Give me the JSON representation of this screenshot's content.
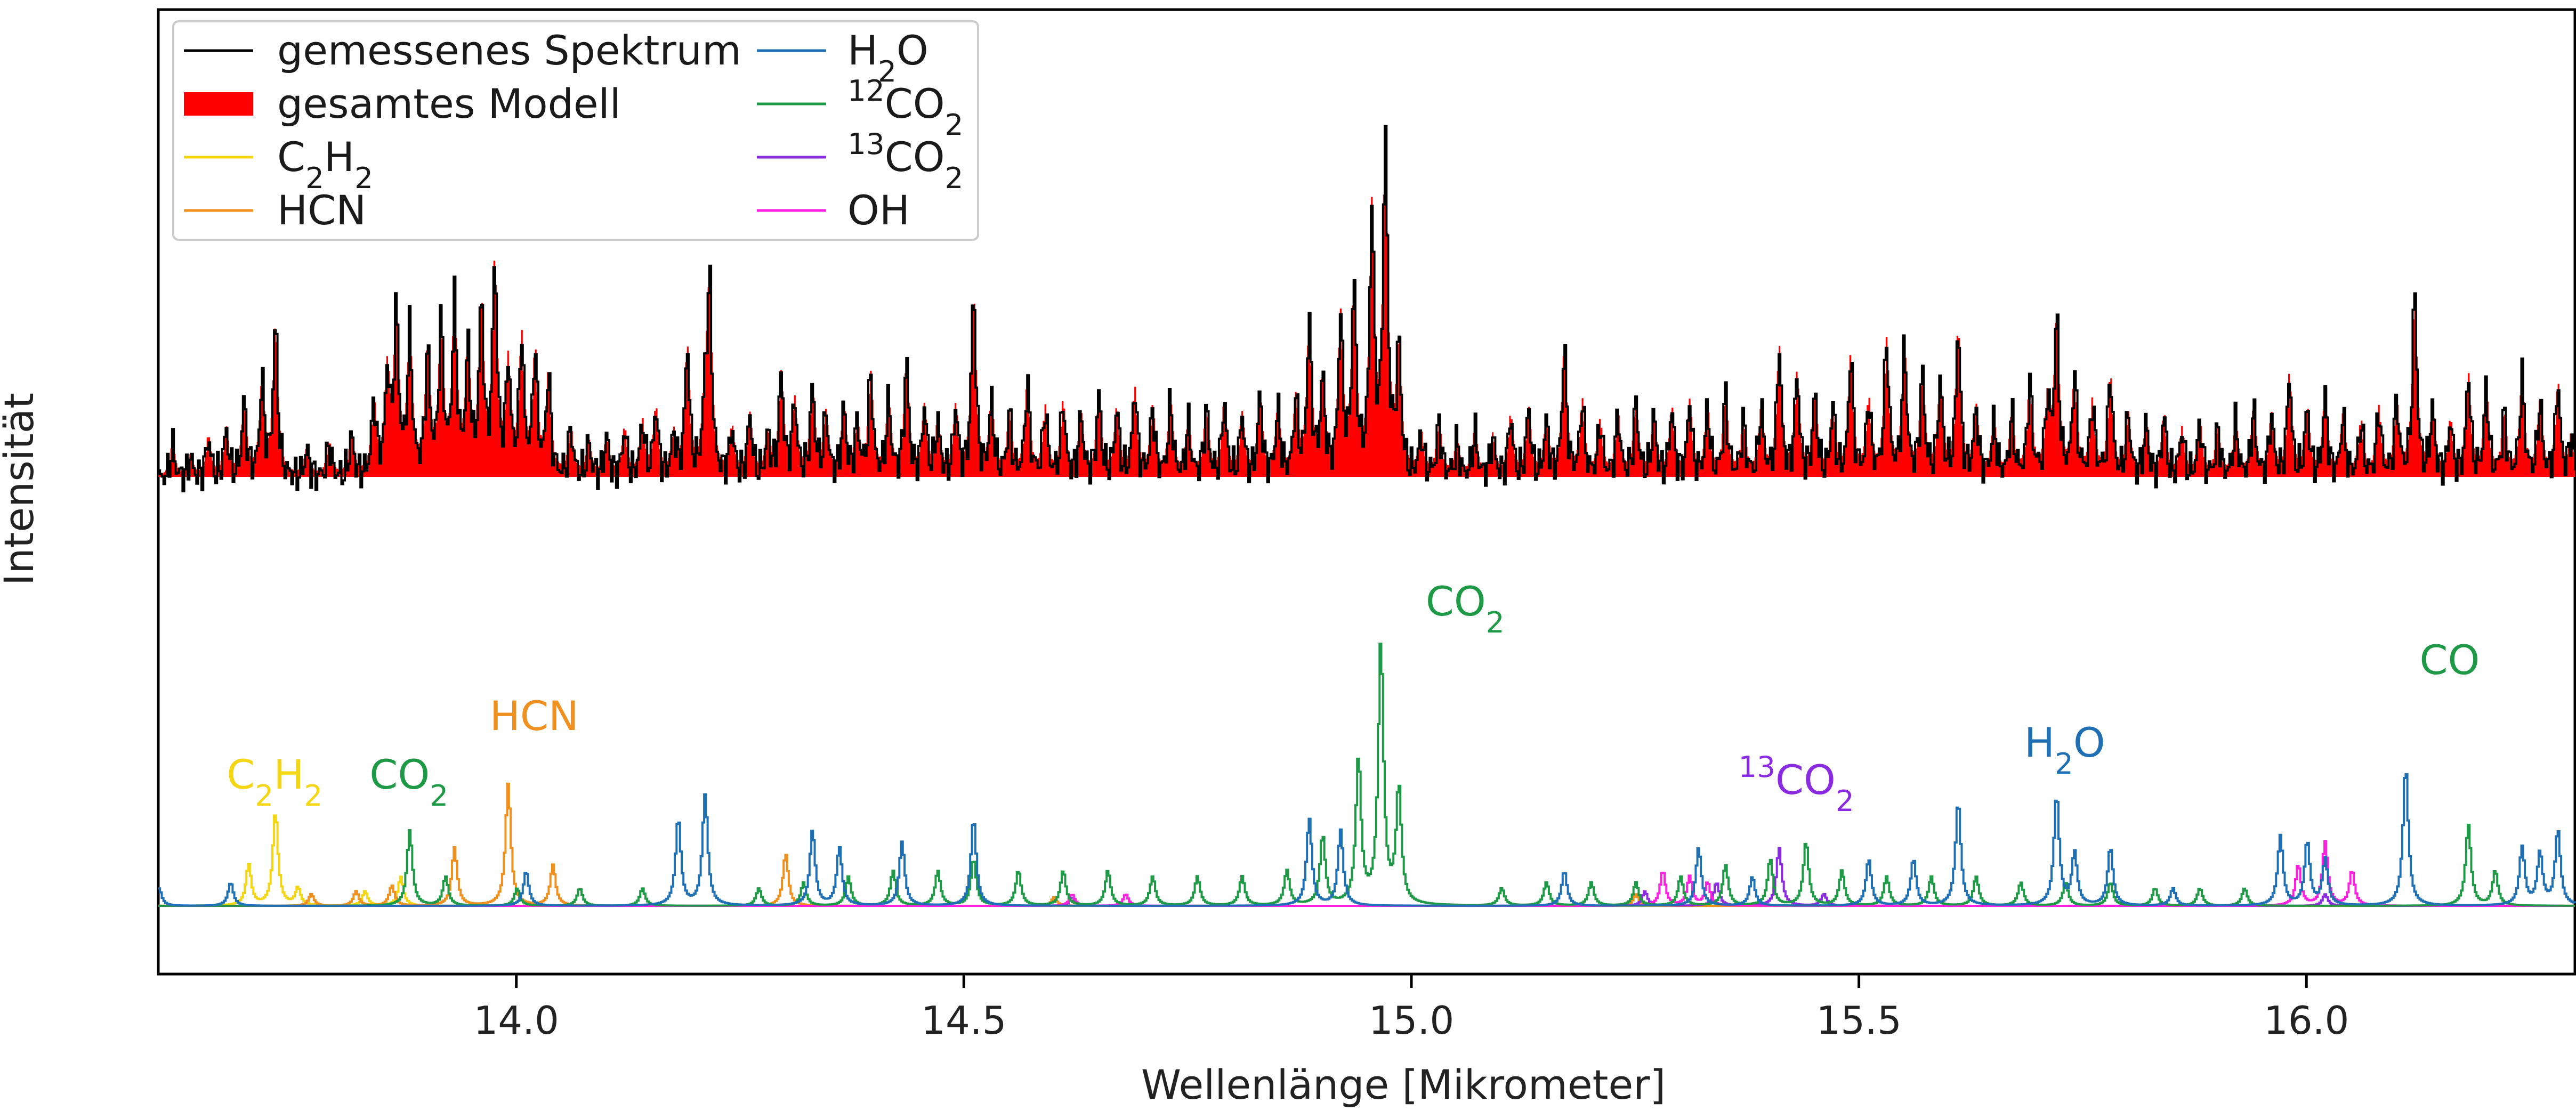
{
  "chart_data": {
    "type": "line",
    "title": "",
    "xlabel": "Wellenlänge [Mikrometer]",
    "ylabel": "Intensität",
    "xlim": [
      13.6,
      16.3
    ],
    "x_ticks": [
      14.0,
      14.5,
      15.0,
      15.5,
      16.0
    ],
    "x_tick_labels": [
      "14.0",
      "14.5",
      "15.0",
      "15.5",
      "16.0"
    ],
    "y_ticks": [],
    "grid": false,
    "legend": {
      "position": "top-left",
      "columns": 2,
      "entries": [
        {
          "key": "measured",
          "label": "gemessenes Spektrum",
          "color": "#000000",
          "style": "line"
        },
        {
          "key": "model",
          "label": "gesamtes Modell",
          "color": "#ff0000",
          "style": "fill"
        },
        {
          "key": "c2h2",
          "label": "C2H2",
          "color": "#f5d614",
          "style": "line"
        },
        {
          "key": "hcn",
          "label": "HCN",
          "color": "#f0901e",
          "style": "line"
        },
        {
          "key": "h2o",
          "label": "H2O",
          "color": "#1f6fb4",
          "style": "line"
        },
        {
          "key": "co2_12",
          "label": "12CO2",
          "color": "#1e9a46",
          "style": "line"
        },
        {
          "key": "co2_13",
          "label": "13CO2",
          "color": "#8a2be2",
          "style": "line"
        },
        {
          "key": "oh",
          "label": "OH",
          "color": "#ff1fe0",
          "style": "line"
        }
      ]
    },
    "annotations": [
      {
        "label": "C2H2",
        "x": 13.73,
        "color": "#f5d614"
      },
      {
        "label": "CO2",
        "x": 13.88,
        "color": "#1e9a46"
      },
      {
        "label": "HCN",
        "x": 14.02,
        "color": "#f0901e"
      },
      {
        "label": "CO2",
        "x": 15.06,
        "color": "#1e9a46"
      },
      {
        "label": "13CO2",
        "x": 15.43,
        "color": "#8a2be2"
      },
      {
        "label": "H2O",
        "x": 15.73,
        "color": "#1f6fb4"
      },
      {
        "label": "CO",
        "x": 16.16,
        "color": "#1e9a46"
      }
    ],
    "series_upper": {
      "baseline": 0,
      "peaks": [
        [
          13.615,
          0.1
        ],
        [
          13.635,
          0.06
        ],
        [
          13.655,
          0.12
        ],
        [
          13.675,
          0.14
        ],
        [
          13.695,
          0.22
        ],
        [
          13.715,
          0.28
        ],
        [
          13.73,
          0.45
        ],
        [
          13.765,
          0.08
        ],
        [
          13.79,
          0.1
        ],
        [
          13.815,
          0.12
        ],
        [
          13.84,
          0.22
        ],
        [
          13.855,
          0.3
        ],
        [
          13.865,
          0.48
        ],
        [
          13.88,
          0.42
        ],
        [
          13.9,
          0.36
        ],
        [
          13.915,
          0.44
        ],
        [
          13.93,
          0.5
        ],
        [
          13.945,
          0.36
        ],
        [
          13.96,
          0.5
        ],
        [
          13.975,
          0.62
        ],
        [
          13.99,
          0.32
        ],
        [
          14.005,
          0.4
        ],
        [
          14.02,
          0.36
        ],
        [
          14.035,
          0.3
        ],
        [
          14.06,
          0.14
        ],
        [
          14.08,
          0.1
        ],
        [
          14.1,
          0.12
        ],
        [
          14.12,
          0.14
        ],
        [
          14.14,
          0.16
        ],
        [
          14.155,
          0.2
        ],
        [
          14.175,
          0.12
        ],
        [
          14.19,
          0.38
        ],
        [
          14.21,
          0.2
        ],
        [
          14.215,
          0.55
        ],
        [
          14.24,
          0.14
        ],
        [
          14.26,
          0.18
        ],
        [
          14.28,
          0.12
        ],
        [
          14.295,
          0.3
        ],
        [
          14.31,
          0.22
        ],
        [
          14.33,
          0.26
        ],
        [
          14.345,
          0.18
        ],
        [
          14.365,
          0.2
        ],
        [
          14.38,
          0.15
        ],
        [
          14.395,
          0.3
        ],
        [
          14.415,
          0.22
        ],
        [
          14.435,
          0.34
        ],
        [
          14.455,
          0.2
        ],
        [
          14.47,
          0.16
        ],
        [
          14.49,
          0.2
        ],
        [
          14.51,
          0.55
        ],
        [
          14.53,
          0.22
        ],
        [
          14.55,
          0.18
        ],
        [
          14.57,
          0.28
        ],
        [
          14.59,
          0.2
        ],
        [
          14.61,
          0.22
        ],
        [
          14.63,
          0.18
        ],
        [
          14.65,
          0.24
        ],
        [
          14.67,
          0.2
        ],
        [
          14.69,
          0.26
        ],
        [
          14.71,
          0.2
        ],
        [
          14.73,
          0.22
        ],
        [
          14.75,
          0.16
        ],
        [
          14.77,
          0.2
        ],
        [
          14.79,
          0.22
        ],
        [
          14.81,
          0.18
        ],
        [
          14.83,
          0.24
        ],
        [
          14.85,
          0.2
        ],
        [
          14.87,
          0.22
        ],
        [
          14.885,
          0.45
        ],
        [
          14.9,
          0.28
        ],
        [
          14.92,
          0.46
        ],
        [
          14.935,
          0.55
        ],
        [
          14.955,
          0.78
        ],
        [
          14.97,
          1.0
        ],
        [
          14.985,
          0.38
        ],
        [
          15.01,
          0.12
        ],
        [
          15.03,
          0.16
        ],
        [
          15.05,
          0.1
        ],
        [
          15.07,
          0.14
        ],
        [
          15.09,
          0.12
        ],
        [
          15.11,
          0.18
        ],
        [
          15.13,
          0.2
        ],
        [
          15.15,
          0.16
        ],
        [
          15.17,
          0.38
        ],
        [
          15.19,
          0.22
        ],
        [
          15.21,
          0.16
        ],
        [
          15.23,
          0.18
        ],
        [
          15.25,
          0.22
        ],
        [
          15.27,
          0.18
        ],
        [
          15.29,
          0.2
        ],
        [
          15.31,
          0.22
        ],
        [
          15.33,
          0.2
        ],
        [
          15.35,
          0.24
        ],
        [
          15.37,
          0.16
        ],
        [
          15.39,
          0.2
        ],
        [
          15.41,
          0.38
        ],
        [
          15.43,
          0.3
        ],
        [
          15.45,
          0.24
        ],
        [
          15.47,
          0.2
        ],
        [
          15.49,
          0.36
        ],
        [
          15.51,
          0.22
        ],
        [
          15.53,
          0.4
        ],
        [
          15.55,
          0.38
        ],
        [
          15.57,
          0.3
        ],
        [
          15.59,
          0.28
        ],
        [
          15.61,
          0.44
        ],
        [
          15.63,
          0.2
        ],
        [
          15.65,
          0.16
        ],
        [
          15.67,
          0.18
        ],
        [
          15.69,
          0.28
        ],
        [
          15.71,
          0.22
        ],
        [
          15.72,
          0.46
        ],
        [
          15.74,
          0.3
        ],
        [
          15.76,
          0.22
        ],
        [
          15.78,
          0.3
        ],
        [
          15.8,
          0.18
        ],
        [
          15.82,
          0.16
        ],
        [
          15.84,
          0.18
        ],
        [
          15.86,
          0.14
        ],
        [
          15.88,
          0.16
        ],
        [
          15.9,
          0.14
        ],
        [
          15.92,
          0.16
        ],
        [
          15.94,
          0.2
        ],
        [
          15.96,
          0.18
        ],
        [
          15.98,
          0.3
        ],
        [
          16.0,
          0.2
        ],
        [
          16.02,
          0.24
        ],
        [
          16.04,
          0.18
        ],
        [
          16.06,
          0.16
        ],
        [
          16.08,
          0.2
        ],
        [
          16.1,
          0.22
        ],
        [
          16.12,
          0.55
        ],
        [
          16.14,
          0.2
        ],
        [
          16.16,
          0.16
        ],
        [
          16.18,
          0.3
        ],
        [
          16.2,
          0.26
        ],
        [
          16.22,
          0.18
        ],
        [
          16.24,
          0.3
        ],
        [
          16.26,
          0.22
        ],
        [
          16.28,
          0.28
        ],
        [
          16.295,
          0.12
        ]
      ]
    },
    "series_lower": {
      "baseline": 0,
      "c2h2": [
        [
          13.7,
          0.14
        ],
        [
          13.73,
          0.32
        ],
        [
          13.755,
          0.06
        ],
        [
          13.83,
          0.05
        ],
        [
          13.87,
          0.1
        ]
      ],
      "hcn": [
        [
          13.77,
          0.04
        ],
        [
          13.82,
          0.05
        ],
        [
          13.86,
          0.07
        ],
        [
          13.93,
          0.2
        ],
        [
          13.99,
          0.42
        ],
        [
          14.04,
          0.14
        ],
        [
          14.3,
          0.18
        ],
        [
          14.6,
          0.03
        ],
        [
          15.25,
          0.04
        ]
      ],
      "h2o": [
        [
          13.6,
          0.06
        ],
        [
          13.68,
          0.08
        ],
        [
          14.01,
          0.12
        ],
        [
          14.18,
          0.3
        ],
        [
          14.21,
          0.38
        ],
        [
          14.33,
          0.26
        ],
        [
          14.36,
          0.2
        ],
        [
          14.43,
          0.22
        ],
        [
          14.51,
          0.3
        ],
        [
          14.885,
          0.3
        ],
        [
          14.92,
          0.26
        ],
        [
          15.17,
          0.12
        ],
        [
          15.32,
          0.2
        ],
        [
          15.38,
          0.1
        ],
        [
          15.51,
          0.16
        ],
        [
          15.56,
          0.16
        ],
        [
          15.61,
          0.36
        ],
        [
          15.72,
          0.38
        ],
        [
          15.74,
          0.18
        ],
        [
          15.78,
          0.2
        ],
        [
          15.85,
          0.06
        ],
        [
          15.97,
          0.24
        ],
        [
          16.0,
          0.22
        ],
        [
          16.02,
          0.16
        ],
        [
          16.11,
          0.48
        ],
        [
          16.24,
          0.2
        ],
        [
          16.26,
          0.18
        ],
        [
          16.28,
          0.26
        ]
      ],
      "co2_12": [
        [
          13.88,
          0.26
        ],
        [
          13.92,
          0.1
        ],
        [
          14.0,
          0.06
        ],
        [
          14.07,
          0.06
        ],
        [
          14.14,
          0.06
        ],
        [
          14.27,
          0.06
        ],
        [
          14.32,
          0.08
        ],
        [
          14.37,
          0.1
        ],
        [
          14.42,
          0.12
        ],
        [
          14.47,
          0.12
        ],
        [
          14.51,
          0.16
        ],
        [
          14.56,
          0.12
        ],
        [
          14.61,
          0.12
        ],
        [
          14.66,
          0.12
        ],
        [
          14.71,
          0.1
        ],
        [
          14.76,
          0.1
        ],
        [
          14.81,
          0.1
        ],
        [
          14.86,
          0.12
        ],
        [
          14.9,
          0.24
        ],
        [
          14.94,
          0.5
        ],
        [
          14.965,
          0.9
        ],
        [
          14.985,
          0.4
        ],
        [
          15.1,
          0.06
        ],
        [
          15.15,
          0.08
        ],
        [
          15.2,
          0.08
        ],
        [
          15.25,
          0.08
        ],
        [
          15.3,
          0.1
        ],
        [
          15.35,
          0.14
        ],
        [
          15.4,
          0.16
        ],
        [
          15.44,
          0.22
        ],
        [
          15.48,
          0.12
        ],
        [
          15.53,
          0.1
        ],
        [
          15.58,
          0.1
        ],
        [
          15.63,
          0.1
        ],
        [
          15.68,
          0.08
        ],
        [
          15.73,
          0.08
        ],
        [
          15.78,
          0.08
        ],
        [
          15.83,
          0.06
        ],
        [
          15.88,
          0.06
        ],
        [
          15.93,
          0.06
        ],
        [
          16.18,
          0.28
        ],
        [
          16.21,
          0.12
        ]
      ],
      "co2_13": [
        [
          14.62,
          0.03
        ],
        [
          15.26,
          0.05
        ],
        [
          15.34,
          0.08
        ],
        [
          15.41,
          0.2
        ],
        [
          15.46,
          0.04
        ],
        [
          16.02,
          0.04
        ]
      ],
      "oh": [
        [
          14.62,
          0.04
        ],
        [
          14.68,
          0.04
        ],
        [
          15.28,
          0.12
        ],
        [
          15.31,
          0.1
        ],
        [
          15.33,
          0.08
        ],
        [
          15.99,
          0.14
        ],
        [
          16.02,
          0.22
        ],
        [
          16.05,
          0.12
        ]
      ]
    }
  }
}
